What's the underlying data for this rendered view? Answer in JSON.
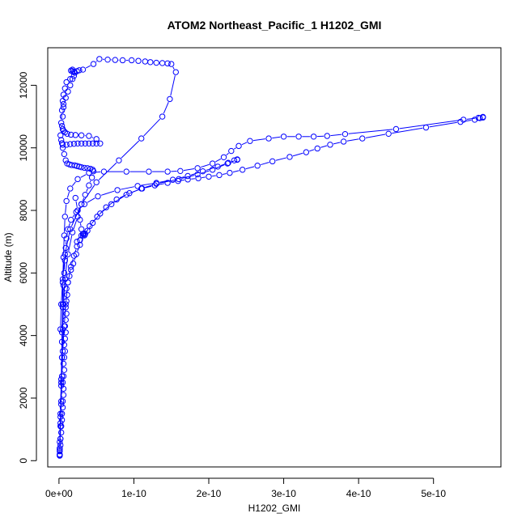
{
  "chart_data": {
    "type": "scatter",
    "title": "ATOM2 Northeast_Pacific_1 H1202_GMI",
    "xlabel": "H1202_GMI",
    "ylabel": "Altitude (m)",
    "xlim": [
      -1.5e-11,
      5.9e-10
    ],
    "ylim": [
      -200,
      13200
    ],
    "x_ticks": [
      0,
      1e-10,
      2e-10,
      3e-10,
      4e-10,
      5e-10
    ],
    "x_tick_labels": [
      "0e+00",
      "1e-10",
      "2e-10",
      "3e-10",
      "4e-10",
      "5e-10"
    ],
    "y_ticks": [
      0,
      2000,
      4000,
      6000,
      8000,
      10000,
      12000
    ],
    "y_tick_labels": [
      "0",
      "2000",
      "4000",
      "6000",
      "8000",
      "10000",
      "12000"
    ],
    "grid": false,
    "legend": "none",
    "style": {
      "marker": "open-circle",
      "line": true,
      "color": "#0000ff"
    },
    "series": [
      {
        "x": [
          1e-12,
          1e-12,
          2e-12,
          2e-12,
          3e-12,
          3e-12,
          4e-12,
          4e-12,
          5e-12,
          5e-12,
          6e-12,
          6e-12,
          5e-12,
          6e-12,
          7e-12,
          6e-12,
          7e-12,
          8e-12,
          7e-12,
          8e-12,
          9e-12,
          8e-12,
          9e-12,
          1e-11,
          9e-12,
          1e-11,
          1.1e-11,
          1e-11,
          1.2e-11,
          1.4e-11,
          1.6e-11,
          1.9e-11,
          2.3e-11,
          2.8e-11,
          3.4e-11,
          4.1e-11,
          5.1e-11,
          6.3e-11,
          7.7e-11,
          9.4e-11,
          1.11e-10,
          1.28e-10,
          1.45e-10,
          1.59e-10,
          1.72e-10,
          1.86e-10,
          2e-10,
          2.14e-10,
          2.28e-10,
          2.45e-10,
          2.65e-10,
          2.85e-10,
          3.08e-10,
          3.3e-10,
          3.45e-10,
          3.62e-10,
          3.8e-10,
          4.05e-10,
          4.4e-10,
          4.9e-10,
          5.36e-10,
          5.55e-10,
          5.62e-10,
          5.66e-10
        ],
        "y": [
          160,
          300,
          500,
          700,
          900,
          1100,
          1300,
          1500,
          1700,
          1900,
          2100,
          2300,
          2500,
          2700,
          2900,
          3100,
          3300,
          3500,
          3700,
          3900,
          4100,
          4300,
          4500,
          4700,
          4900,
          5100,
          5300,
          5500,
          5700,
          5900,
          6100,
          6300,
          6600,
          6900,
          7200,
          7500,
          7800,
          8100,
          8350,
          8550,
          8700,
          8800,
          8880,
          8940,
          8990,
          9030,
          9080,
          9130,
          9200,
          9300,
          9430,
          9570,
          9710,
          9860,
          9980,
          10100,
          10200,
          10300,
          10450,
          10650,
          10830,
          10900,
          10950,
          10970
        ]
      },
      {
        "x": [
          5.66e-10,
          5.6e-10,
          5.4e-10,
          4.5e-10,
          3.82e-10,
          3.58e-10,
          3.4e-10,
          3.2e-10,
          3e-10,
          2.8e-10,
          2.55e-10,
          2.4e-10,
          2.3e-10,
          2.2e-10,
          2.05e-10,
          1.85e-10,
          1.62e-10,
          1.45e-10,
          1.2e-10,
          9e-11,
          6e-11,
          4e-11,
          2.5e-11,
          1.5e-11,
          1e-11,
          8e-12,
          7e-12,
          6e-12,
          5e-12,
          5e-12,
          4e-12,
          4e-12,
          3e-12,
          3e-12,
          2e-12,
          2e-12,
          1e-12,
          1e-12
        ],
        "y": [
          10990,
          10960,
          10900,
          10600,
          10440,
          10380,
          10360,
          10360,
          10360,
          10300,
          10220,
          10060,
          9900,
          9700,
          9500,
          9350,
          9260,
          9240,
          9240,
          9240,
          9240,
          9200,
          9000,
          8700,
          8300,
          7800,
          7200,
          6500,
          5700,
          4900,
          4100,
          3300,
          2500,
          1800,
          1200,
          700,
          350,
          180
        ]
      },
      {
        "x": [
          1e-12,
          2e-12,
          3e-12,
          4e-12,
          5e-12,
          6e-12,
          7e-12,
          8e-12,
          9e-12,
          1e-11,
          1.2e-11,
          1.6e-11,
          2.3e-11,
          3.4e-11,
          5.2e-11,
          7.8e-11,
          1.05e-10,
          1.3e-10,
          1.52e-10,
          1.72e-10,
          1.92e-10,
          2.12e-10,
          2.26e-10,
          2.34e-10,
          2.38e-10
        ],
        "y": [
          200,
          1400,
          2600,
          3800,
          5000,
          5600,
          6000,
          6400,
          6800,
          7100,
          7400,
          7700,
          7950,
          8200,
          8450,
          8650,
          8780,
          8880,
          8980,
          9100,
          9250,
          9400,
          9520,
          9600,
          9630
        ]
      },
      {
        "x": [
          2.38e-10,
          2.25e-10,
          2.05e-10,
          1.85e-10,
          1.6e-10,
          1.3e-10,
          1.1e-10,
          9e-11,
          7e-11,
          5.5e-11,
          4.5e-11,
          3.8e-11,
          3.2e-11,
          2.8e-11,
          2.4e-11,
          2e-11,
          1.6e-11,
          1.2e-11,
          9e-12,
          7e-12,
          5e-12,
          4e-12,
          3e-12,
          2e-12,
          1e-12
        ],
        "y": [
          9620,
          9500,
          9300,
          9150,
          9000,
          8850,
          8700,
          8500,
          8200,
          7900,
          7600,
          7350,
          7200,
          7050,
          6850,
          6550,
          6200,
          5700,
          5000,
          4300,
          3500,
          2700,
          1900,
          1100,
          400
        ]
      },
      {
        "x": [
          1e-12,
          2e-12,
          3e-12,
          4e-12,
          5e-12,
          6e-12,
          8e-12,
          1.2e-11,
          1.8e-11,
          2.5e-11,
          3e-11,
          3.5e-11,
          4e-11,
          4.4e-11,
          4.6e-11,
          4.5e-11,
          4.2e-11,
          3.8e-11,
          3.4e-11,
          3e-11,
          2.7e-11,
          2.4e-11,
          2.1e-11,
          1.7e-11,
          1.4e-11,
          1.1e-11,
          9e-12,
          7e-12,
          5e-12,
          4e-12,
          3e-12,
          2e-12
        ],
        "y": [
          600,
          1500,
          2400,
          3300,
          4200,
          5000,
          5800,
          6600,
          7300,
          7800,
          8200,
          8500,
          8800,
          9050,
          9250,
          9300,
          9330,
          9350,
          9360,
          9380,
          9400,
          9420,
          9440,
          9450,
          9470,
          9500,
          9600,
          9800,
          10000,
          10150,
          10250,
          10400
        ]
      },
      {
        "x": [
          5e-12,
          1e-11,
          1.5e-11,
          2e-11,
          2.5e-11,
          3e-11,
          3.5e-11,
          4e-11,
          4.5e-11,
          5e-11,
          5.5e-11,
          5e-11,
          4e-11,
          3e-11,
          2.2e-11,
          1.6e-11,
          1.1e-11,
          8e-12,
          6e-12,
          5e-12,
          4e-12
        ],
        "y": [
          10100,
          10100,
          10120,
          10130,
          10140,
          10140,
          10140,
          10140,
          10140,
          10140,
          10140,
          10280,
          10380,
          10400,
          10410,
          10420,
          10450,
          10500,
          10550,
          10600,
          10700
        ]
      },
      {
        "x": [
          3e-12,
          4e-12,
          6e-12,
          9e-12,
          1.2e-11,
          1.5e-11,
          1.8e-11,
          2.1e-11,
          2.4e-11,
          2.7e-11,
          3.2e-11,
          4.6e-11,
          5.4e-11,
          6.5e-11,
          7.5e-11,
          8.5e-11,
          9.7e-11,
          1.06e-10,
          1.15e-10,
          1.22e-10,
          1.3e-10,
          1.38e-10,
          1.45e-10,
          1.5e-10,
          1.56e-10,
          1.48e-10,
          1.38e-10,
          1.1e-10,
          8e-11,
          5e-11,
          3e-11,
          1.5e-11,
          8e-12,
          5e-12,
          3e-12,
          2e-12
        ],
        "y": [
          10800,
          11200,
          11400,
          11600,
          11800,
          12000,
          12200,
          12400,
          12450,
          12480,
          12500,
          12680,
          12840,
          12820,
          12810,
          12800,
          12800,
          12780,
          12760,
          12740,
          12720,
          12710,
          12700,
          12680,
          12420,
          11560,
          11000,
          10300,
          9600,
          8900,
          8200,
          7400,
          6600,
          5800,
          5000,
          4200
        ]
      },
      {
        "x": [
          1.6e-11,
          1.8e-11,
          1.8e-11,
          2e-11,
          2e-11,
          1.5e-11,
          1e-11,
          8e-12,
          6e-12,
          5e-12,
          6e-12,
          5e-12
        ],
        "y": [
          12470,
          12500,
          12450,
          12430,
          12300,
          12200,
          12100,
          11900,
          11700,
          11500,
          11300,
          11000
        ]
      },
      {
        "x": [
          2.4e-11,
          3e-11,
          3.2e-11,
          3.5e-11,
          3.3e-11,
          3e-11,
          2.8e-11,
          2.5e-11,
          2.2e-11
        ],
        "y": [
          7000,
          7200,
          7250,
          7250,
          7260,
          7400,
          7700,
          8000,
          8400
        ]
      }
    ]
  }
}
